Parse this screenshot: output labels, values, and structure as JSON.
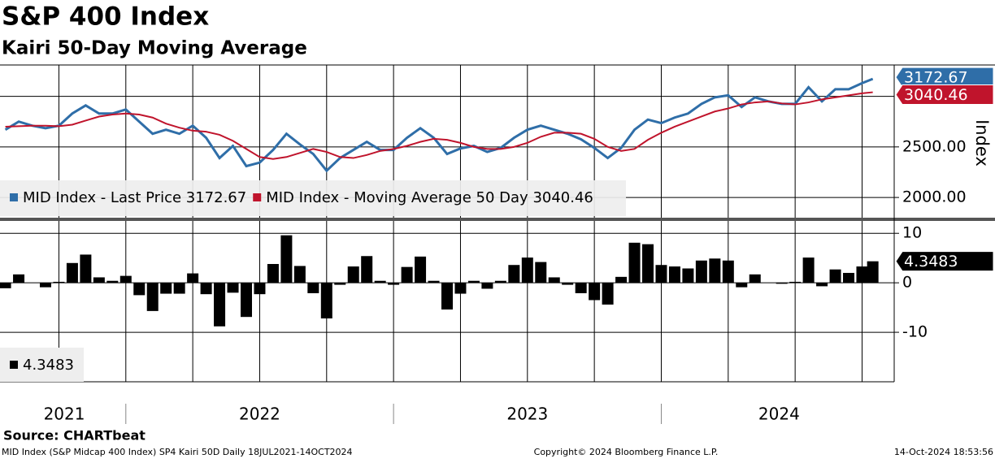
{
  "chart_data": [
    {
      "type": "line",
      "title": "S&P 400 Index",
      "subtitle": "Kairi 50-Day Moving Average",
      "y_axis_label": "Index",
      "x": [
        2021.55,
        2021.6,
        2021.65,
        2021.7,
        2021.75,
        2021.8,
        2021.85,
        2021.9,
        2021.95,
        2022.0,
        2022.05,
        2022.1,
        2022.15,
        2022.2,
        2022.25,
        2022.3,
        2022.35,
        2022.4,
        2022.45,
        2022.5,
        2022.55,
        2022.6,
        2022.65,
        2022.7,
        2022.75,
        2022.8,
        2022.85,
        2022.9,
        2022.95,
        2023.0,
        2023.05,
        2023.1,
        2023.15,
        2023.2,
        2023.25,
        2023.3,
        2023.35,
        2023.4,
        2023.45,
        2023.5,
        2023.55,
        2023.6,
        2023.65,
        2023.7,
        2023.75,
        2023.8,
        2023.85,
        2023.9,
        2023.95,
        2024.0,
        2024.05,
        2024.1,
        2024.15,
        2024.2,
        2024.25,
        2024.3,
        2024.35,
        2024.4,
        2024.45,
        2024.5,
        2024.55,
        2024.6,
        2024.65,
        2024.7,
        2024.75,
        2024.79
      ],
      "xlim": [
        2021.53,
        2024.87
      ],
      "xgrid": [
        2021.75,
        2022,
        2022.25,
        2022.5,
        2022.75,
        2023,
        2023.25,
        2023.5,
        2023.75,
        2024,
        2024.25,
        2024.5,
        2024.75
      ],
      "ylim": [
        1800,
        3310
      ],
      "ygrid": [
        2000,
        2500,
        3000
      ],
      "yticks": [
        {
          "value": 2000,
          "label": "2000.00"
        },
        {
          "value": 2500,
          "label": "2500.00"
        }
      ],
      "series": [
        {
          "name": "MID Index - Last Price",
          "color": "#2f6ea8",
          "last_label": "3172.67",
          "values": [
            2670,
            2750,
            2710,
            2685,
            2710,
            2830,
            2910,
            2830,
            2830,
            2870,
            2750,
            2630,
            2670,
            2630,
            2710,
            2590,
            2390,
            2510,
            2310,
            2345,
            2470,
            2630,
            2525,
            2430,
            2265,
            2390,
            2470,
            2550,
            2470,
            2470,
            2590,
            2685,
            2590,
            2430,
            2485,
            2510,
            2450,
            2490,
            2590,
            2670,
            2710,
            2670,
            2630,
            2575,
            2490,
            2390,
            2490,
            2670,
            2770,
            2735,
            2790,
            2830,
            2925,
            2990,
            3010,
            2895,
            2990,
            2950,
            2925,
            2925,
            3090,
            2950,
            3070,
            3070,
            3130,
            3172.67
          ]
        },
        {
          "name": "MID Index - Moving Average 50 Day",
          "color": "#c0142c",
          "last_label": "3040.46",
          "values": [
            2700,
            2705,
            2710,
            2710,
            2705,
            2720,
            2760,
            2800,
            2820,
            2830,
            2820,
            2790,
            2730,
            2690,
            2660,
            2650,
            2620,
            2560,
            2480,
            2400,
            2380,
            2400,
            2440,
            2480,
            2450,
            2400,
            2390,
            2420,
            2460,
            2480,
            2510,
            2550,
            2580,
            2570,
            2540,
            2500,
            2480,
            2480,
            2500,
            2540,
            2600,
            2640,
            2640,
            2630,
            2580,
            2500,
            2460,
            2480,
            2570,
            2640,
            2700,
            2750,
            2800,
            2850,
            2880,
            2920,
            2940,
            2950,
            2930,
            2920,
            2940,
            2970,
            2990,
            3010,
            3030,
            3040.46
          ]
        }
      ]
    },
    {
      "type": "bar",
      "x": [
        2021.55,
        2021.6,
        2021.65,
        2021.7,
        2021.75,
        2021.8,
        2021.85,
        2021.9,
        2021.95,
        2022.0,
        2022.05,
        2022.1,
        2022.15,
        2022.2,
        2022.25,
        2022.3,
        2022.35,
        2022.4,
        2022.45,
        2022.5,
        2022.55,
        2022.6,
        2022.65,
        2022.7,
        2022.75,
        2022.8,
        2022.85,
        2022.9,
        2022.95,
        2023.0,
        2023.05,
        2023.1,
        2023.15,
        2023.2,
        2023.25,
        2023.3,
        2023.35,
        2023.4,
        2023.45,
        2023.5,
        2023.55,
        2023.6,
        2023.65,
        2023.7,
        2023.75,
        2023.8,
        2023.85,
        2023.9,
        2023.95,
        2024.0,
        2024.05,
        2024.1,
        2024.15,
        2024.2,
        2024.25,
        2024.3,
        2024.35,
        2024.4,
        2024.45,
        2024.5,
        2024.55,
        2024.6,
        2024.65,
        2024.7,
        2024.75,
        2024.79
      ],
      "xlim": [
        2021.53,
        2024.87
      ],
      "xgrid": [
        2021.75,
        2022,
        2022.25,
        2022.5,
        2022.75,
        2023,
        2023.25,
        2023.5,
        2023.75,
        2024,
        2024.25,
        2024.5,
        2024.75
      ],
      "ylim": [
        -20,
        12.5
      ],
      "yticks": [
        10,
        0,
        -10
      ],
      "year_separators": [
        2022,
        2023,
        2024
      ],
      "year_labels": [
        {
          "value": 2021.77,
          "label": "2021"
        },
        {
          "value": 2022.5,
          "label": "2022"
        },
        {
          "value": 2023.5,
          "label": "2023"
        },
        {
          "value": 2024.44,
          "label": "2024"
        }
      ],
      "series": [
        {
          "name": "4.3483",
          "color": "#000000",
          "last_label": "4.3483",
          "values": [
            -1.1,
            1.7,
            0,
            -0.9,
            0.2,
            4.0,
            5.7,
            1.1,
            0.4,
            1.4,
            -2.5,
            -5.7,
            -2.2,
            -2.2,
            1.9,
            -2.3,
            -8.8,
            -2.0,
            -6.9,
            -2.3,
            3.8,
            9.6,
            3.4,
            -2.1,
            -7.2,
            -0.4,
            3.3,
            5.4,
            0.4,
            -0.4,
            3.2,
            5.3,
            0.4,
            -5.4,
            -2.2,
            0.4,
            -1.2,
            0.4,
            3.6,
            5.1,
            4.2,
            1.1,
            -0.4,
            -2.1,
            -3.5,
            -4.4,
            1.2,
            8.1,
            7.8,
            3.6,
            3.3,
            2.9,
            4.5,
            4.9,
            4.5,
            -0.9,
            1.7,
            0,
            -0.2,
            0.2,
            5.1,
            -0.7,
            2.7,
            2.0,
            3.3,
            4.3483
          ]
        }
      ]
    }
  ],
  "footer": {
    "source": "Source: CHARTbeat",
    "description": "MID Index (S&P Midcap 400 Index) SP4 Kairi 50D  Daily 18JUL2021-14OCT2024",
    "copyright": "Copyright© 2024 Bloomberg Finance L.P.",
    "timestamp": "14-Oct-2024 18:53:56"
  }
}
